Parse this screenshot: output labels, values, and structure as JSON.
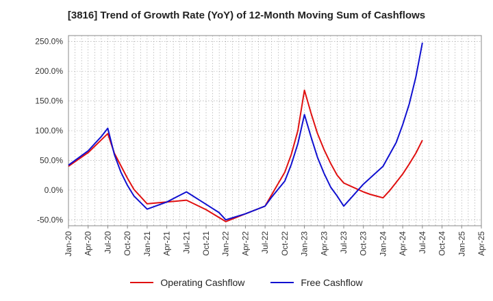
{
  "chart_data": {
    "type": "line",
    "title": "[3816]  Trend of Growth Rate (YoY) of 12-Month Moving Sum of Cashflows",
    "xlabel": "",
    "ylabel": "",
    "x_ticks": [
      "Jan-20",
      "Apr-20",
      "Jul-20",
      "Oct-20",
      "Jan-21",
      "Apr-21",
      "Jul-21",
      "Oct-21",
      "Jan-22",
      "Apr-22",
      "Jul-22",
      "Oct-22",
      "Jan-23",
      "Apr-23",
      "Jul-23",
      "Oct-23",
      "Jan-24",
      "Apr-24",
      "Jul-24",
      "Oct-24",
      "Jan-25",
      "Apr-25"
    ],
    "y_ticks": [
      "250.0%",
      "200.0%",
      "150.0%",
      "100.0%",
      "50.0%",
      "0.0%",
      "-50.0%"
    ],
    "y_tick_values": [
      250,
      200,
      150,
      100,
      50,
      0,
      -50
    ],
    "ylim": [
      -60,
      260
    ],
    "grid": true,
    "legend_position": "bottom",
    "series": [
      {
        "name": "Operating Cashflow",
        "color": "#e01010",
        "x": [
          "Jan-20",
          "Apr-20",
          "Jul-20",
          "Aug-20",
          "Oct-20",
          "Nov-20",
          "Jan-21",
          "Apr-21",
          "Jul-21",
          "Oct-21",
          "Jan-22",
          "Apr-22",
          "Jul-22",
          "Aug-22",
          "Oct-22",
          "Nov-22",
          "Dec-22",
          "Jan-23",
          "Feb-23",
          "Mar-23",
          "Apr-23",
          "May-23",
          "Jun-23",
          "Jul-23",
          "Oct-23",
          "Nov-23",
          "Dec-23",
          "Jan-24",
          "Feb-24",
          "Mar-24",
          "Apr-24",
          "May-24",
          "Jun-24",
          "Jul-24"
        ],
        "values": [
          40,
          63,
          95,
          62,
          20,
          1,
          -23,
          -20,
          -17,
          -33,
          -53,
          -40,
          -27,
          -8,
          30,
          60,
          100,
          168,
          130,
          95,
          68,
          45,
          25,
          12,
          -3,
          -7,
          -10,
          -13,
          -1,
          13,
          27,
          44,
          62,
          84
        ]
      },
      {
        "name": "Free Cashflow",
        "color": "#1010d0",
        "x": [
          "Jan-20",
          "Apr-20",
          "Jun-20",
          "Jul-20",
          "Aug-20",
          "Sep-20",
          "Oct-20",
          "Nov-20",
          "Jan-21",
          "Apr-21",
          "Jul-21",
          "Oct-21",
          "Dec-21",
          "Jan-22",
          "Apr-22",
          "Jul-22",
          "Aug-22",
          "Oct-22",
          "Nov-22",
          "Dec-22",
          "Jan-23",
          "Feb-23",
          "Mar-23",
          "Apr-23",
          "May-23",
          "Jun-23",
          "Jul-23",
          "Oct-23",
          "Jan-24",
          "Mar-24",
          "Apr-24",
          "May-24",
          "Jun-24",
          "Jul-24"
        ],
        "values": [
          42,
          66,
          90,
          104,
          60,
          30,
          8,
          -10,
          -32,
          -20,
          -3,
          -24,
          -38,
          -50,
          -40,
          -27,
          -12,
          15,
          43,
          78,
          127,
          90,
          55,
          28,
          5,
          -10,
          -27,
          10,
          40,
          80,
          110,
          145,
          190,
          248
        ]
      }
    ]
  }
}
